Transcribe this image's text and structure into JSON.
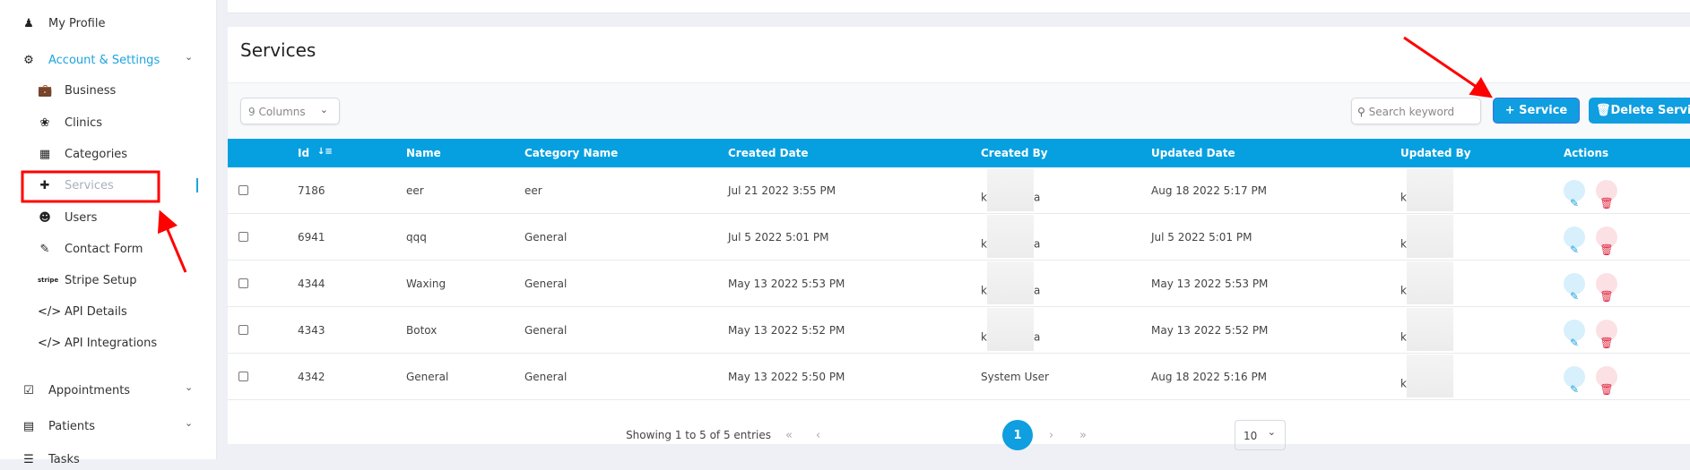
{
  "sidebar": {
    "items": [
      {
        "label": "My Profile",
        "icon": "user-doctor-icon"
      },
      {
        "label": "Account & Settings",
        "icon": "gears-icon",
        "expanded": true
      },
      {
        "label": "Business",
        "icon": "briefcase-icon"
      },
      {
        "label": "Clinics",
        "icon": "lotus-icon"
      },
      {
        "label": "Categories",
        "icon": "grid-icon"
      },
      {
        "label": "Services",
        "icon": "medical-bag-icon",
        "active": true
      },
      {
        "label": "Users",
        "icon": "users-icon"
      },
      {
        "label": "Contact Form",
        "icon": "edit-icon"
      },
      {
        "label": "Stripe Setup",
        "icon": "stripe-icon",
        "icon_text": "stripe"
      },
      {
        "label": "API Details",
        "icon": "code-icon"
      },
      {
        "label": "API Integrations",
        "icon": "code-icon"
      },
      {
        "label": "Appointments",
        "icon": "calendar-check-icon"
      },
      {
        "label": "Patients",
        "icon": "bed-icon"
      },
      {
        "label": "Tasks",
        "icon": "list-icon"
      }
    ]
  },
  "page": {
    "title": "Services"
  },
  "toolbar": {
    "columns_select": "9 Columns",
    "search_placeholder": "Search keyword",
    "add_button": "+ Service",
    "delete_button": "Delete Services"
  },
  "table": {
    "headers": [
      "Id",
      "Name",
      "Category Name",
      "Created Date",
      "Created By",
      "Updated Date",
      "Updated By",
      "Actions"
    ],
    "rows": [
      {
        "id": "7186",
        "name": "eer",
        "category": "eer",
        "created_date": "Jul 21 2022 3:55 PM",
        "created_by": "k",
        "created_by_end": "a",
        "updated_date": "Aug 18 2022 5:17 PM",
        "updated_by": "k"
      },
      {
        "id": "6941",
        "name": "qqq",
        "category": "General",
        "created_date": "Jul 5 2022 5:01 PM",
        "created_by": "k",
        "created_by_end": "a",
        "updated_date": "Jul 5 2022 5:01 PM",
        "updated_by": "k"
      },
      {
        "id": "4344",
        "name": "Waxing",
        "category": "General",
        "created_date": "May 13 2022 5:53 PM",
        "created_by": "k",
        "created_by_end": "a",
        "updated_date": "May 13 2022 5:53 PM",
        "updated_by": "k"
      },
      {
        "id": "4343",
        "name": "Botox",
        "category": "General",
        "created_date": "May 13 2022 5:52 PM",
        "created_by": "k",
        "created_by_end": "a",
        "updated_date": "May 13 2022 5:52 PM",
        "updated_by": "k"
      },
      {
        "id": "4342",
        "name": "General",
        "category": "General",
        "created_date": "May 13 2022 5:50 PM",
        "created_by": "System User",
        "created_by_end": "",
        "updated_date": "Aug 18 2022 5:16 PM",
        "updated_by": "k"
      }
    ]
  },
  "pagination": {
    "summary": "Showing 1 to 5 of 5 entries",
    "current_page": "1",
    "page_size": "10"
  },
  "colors": {
    "accent": "#0f9ee0",
    "annotation": "#ff0000"
  }
}
